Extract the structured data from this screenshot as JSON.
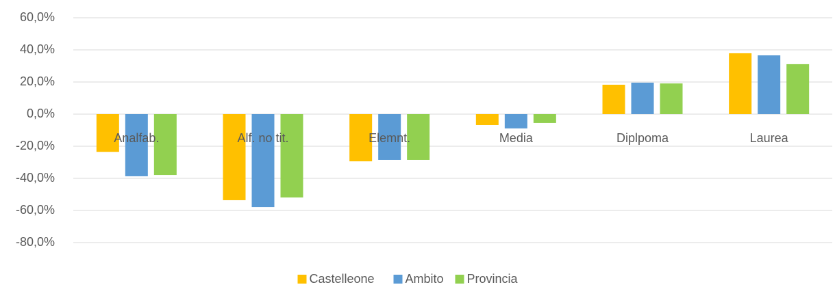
{
  "chart_data": {
    "type": "bar",
    "categories": [
      "Analfab.",
      "Alf. no tit.",
      "Elemnt.",
      "Media",
      "Diplpoma",
      "Laurea"
    ],
    "series": [
      {
        "name": "Castelleone",
        "color": "#ffc000",
        "values": [
          -23.5,
          -53.6,
          -29.4,
          -6.8,
          18.3,
          37.9
        ]
      },
      {
        "name": "Ambito",
        "color": "#5b9bd5",
        "values": [
          -38.7,
          -57.9,
          -28.5,
          -8.9,
          19.6,
          36.6
        ]
      },
      {
        "name": "Provincia",
        "color": "#92d050",
        "values": [
          -37.9,
          -51.9,
          -28.5,
          -5.5,
          19.1,
          31.1
        ]
      }
    ],
    "ylim": [
      -80,
      60
    ],
    "yticks": [
      {
        "value": -80,
        "label": "-80,0%"
      },
      {
        "value": -60,
        "label": "-60,0%"
      },
      {
        "value": -40,
        "label": "-40,0%"
      },
      {
        "value": -20,
        "label": "-20,0%"
      },
      {
        "value": 0,
        "label": "0,0%"
      },
      {
        "value": 20,
        "label": "20,0%"
      },
      {
        "value": 40,
        "label": "40,0%"
      },
      {
        "value": 60,
        "label": "60,0%"
      }
    ],
    "grid": true,
    "legend": "bottom"
  }
}
